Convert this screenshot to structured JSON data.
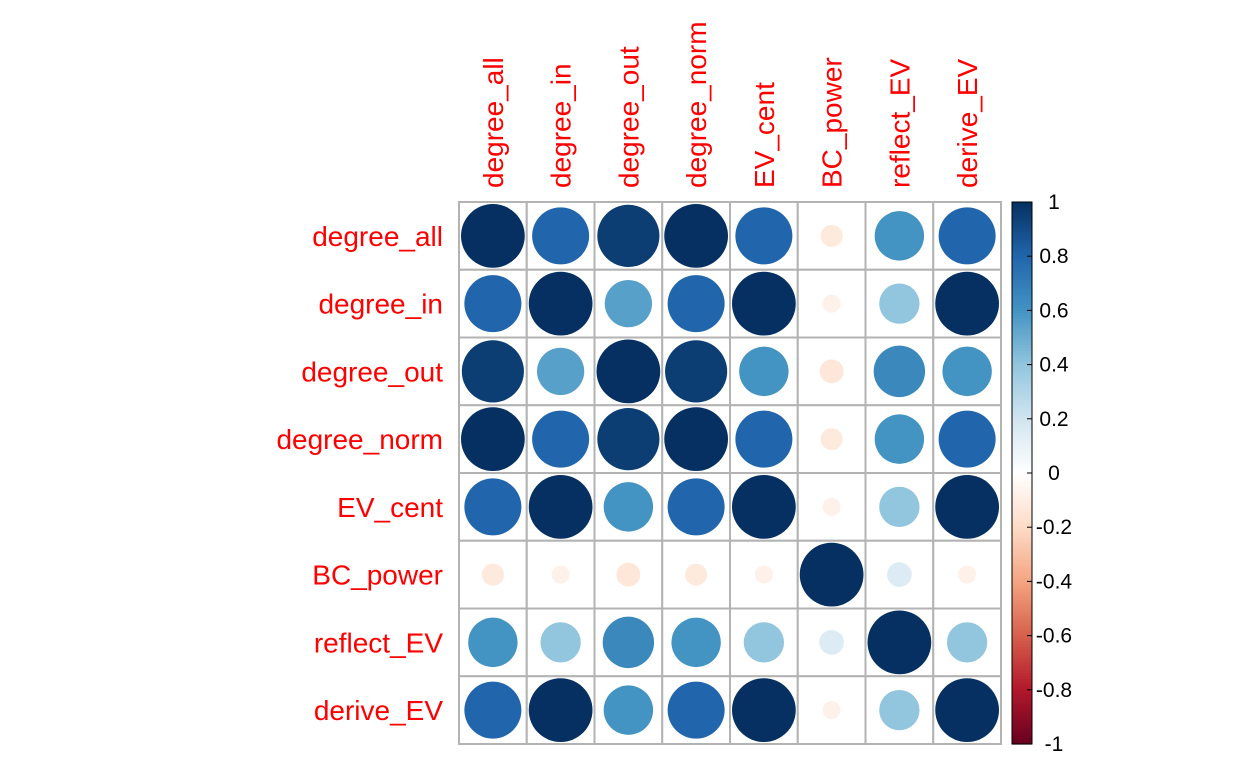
{
  "chart_data": {
    "type": "heatmap",
    "variables": [
      "degree_all",
      "degree_in",
      "degree_out",
      "degree_norm",
      "EV_cent",
      "BC_power",
      "reflect_EV",
      "derive_EV"
    ],
    "matrix": [
      [
        1.0,
        0.8,
        0.95,
        1.0,
        0.8,
        -0.12,
        0.6,
        0.8
      ],
      [
        0.8,
        1.0,
        0.55,
        0.8,
        1.0,
        -0.08,
        0.4,
        1.0
      ],
      [
        0.95,
        0.55,
        1.0,
        0.95,
        0.6,
        -0.14,
        0.65,
        0.6
      ],
      [
        1.0,
        0.8,
        0.95,
        1.0,
        0.8,
        -0.12,
        0.6,
        0.8
      ],
      [
        0.8,
        1.0,
        0.6,
        0.8,
        1.0,
        -0.08,
        0.4,
        1.0
      ],
      [
        -0.12,
        -0.08,
        -0.14,
        -0.12,
        -0.08,
        1.0,
        0.15,
        -0.08
      ],
      [
        0.6,
        0.4,
        0.65,
        0.6,
        0.4,
        0.15,
        1.0,
        0.4
      ],
      [
        0.8,
        1.0,
        0.6,
        0.8,
        1.0,
        -0.08,
        0.4,
        1.0
      ]
    ],
    "legend": {
      "range": [
        -1,
        1
      ],
      "ticks": [
        "1",
        "0.8",
        "0.6",
        "0.4",
        "0.2",
        "0",
        "-0.2",
        "-0.4",
        "-0.6",
        "-0.8",
        "-1"
      ],
      "colors_high_to_low": [
        "#053061",
        "#2166ac",
        "#4393c3",
        "#92c5de",
        "#d1e5f0",
        "#ffffff",
        "#fddbc7",
        "#f4a582",
        "#d6604d",
        "#b2182b",
        "#67001f"
      ]
    },
    "label_color": "#ff0000",
    "grid_color": "#b3b3b3"
  }
}
